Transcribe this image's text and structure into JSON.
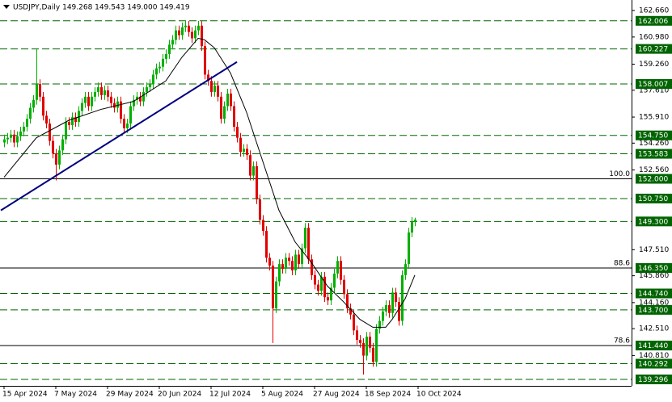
{
  "chart_data": {
    "type": "candlestick",
    "title": "USDJPY,Daily  149.268 149.543 149.000 149.419",
    "bull_color": "#00b000",
    "bear_color": "#e00000",
    "open": [
      154.3,
      154.5,
      154.6,
      154.8,
      154.3,
      154.7,
      155.0,
      155.3,
      155.8,
      156.5,
      157.0,
      158.0,
      157.2,
      156.0,
      155.5,
      154.4,
      153.6,
      152.9,
      153.8,
      154.5,
      155.6,
      155.4,
      155.9,
      155.6,
      156.3,
      156.8,
      157.2,
      156.6,
      157.2,
      157.5,
      157.8,
      157.3,
      157.6,
      157.2,
      156.8,
      156.5,
      156.9,
      155.8,
      155.2,
      155.5,
      156.6,
      157.0,
      157.2,
      156.9,
      157.5,
      157.8,
      158.0,
      158.6,
      159.0,
      159.1,
      159.6,
      159.9,
      160.5,
      160.8,
      161.4,
      161.1,
      161.6,
      161.7,
      161.3,
      160.9,
      161.4,
      161.7,
      160.4,
      158.6,
      158.2,
      157.5,
      157.9,
      157.2,
      155.8,
      156.6,
      157.4,
      156.6,
      155.3,
      154.6,
      153.7,
      153.9,
      153.5,
      152.2,
      152.8,
      150.7,
      149.4,
      148.7,
      147.0,
      146.5,
      143.8,
      145.5,
      146.6,
      146.3,
      147.0,
      146.8,
      146.2,
      147.2,
      146.6,
      147.6,
      148.9,
      146.9,
      145.9,
      145.3,
      144.9,
      145.8,
      144.5,
      144.3,
      145.1,
      146.0,
      146.8,
      145.6,
      144.7,
      143.8,
      143.4,
      142.4,
      141.8,
      141.6,
      140.8,
      142.0,
      141.3,
      140.4,
      142.5,
      143.0,
      143.6,
      144.0,
      143.5,
      144.8,
      144.2,
      143.0,
      145.9,
      146.6,
      148.6,
      149.268
    ],
    "high": [
      154.8,
      154.9,
      155.1,
      155.1,
      155.0,
      155.3,
      155.6,
      156.1,
      156.8,
      157.3,
      160.2,
      158.3,
      157.5,
      156.3,
      155.8,
      154.7,
      153.9,
      154.1,
      154.8,
      155.9,
      155.9,
      156.2,
      156.2,
      156.6,
      157.1,
      157.5,
      157.5,
      157.5,
      157.8,
      158.1,
      158.1,
      157.9,
      157.9,
      157.5,
      157.1,
      157.2,
      157.2,
      156.1,
      155.8,
      156.9,
      157.3,
      157.5,
      157.5,
      157.8,
      158.1,
      158.3,
      158.9,
      159.3,
      159.4,
      159.9,
      160.2,
      160.8,
      161.1,
      161.7,
      161.7,
      161.9,
      162.0,
      162.0,
      161.6,
      161.7,
      162.0,
      162.0,
      160.7,
      158.9,
      158.5,
      158.2,
      158.2,
      157.5,
      156.9,
      157.7,
      157.7,
      156.9,
      155.6,
      154.9,
      154.2,
      154.2,
      153.8,
      153.1,
      153.1,
      151.0,
      149.7,
      149.0,
      147.3,
      146.8,
      145.8,
      146.9,
      146.9,
      147.3,
      147.3,
      147.1,
      147.5,
      147.5,
      147.9,
      149.2,
      149.2,
      147.2,
      146.2,
      145.6,
      146.1,
      146.1,
      144.8,
      145.4,
      146.3,
      147.1,
      147.1,
      145.9,
      145.0,
      144.1,
      143.7,
      142.7,
      142.1,
      141.9,
      142.3,
      142.3,
      141.6,
      142.8,
      143.3,
      143.9,
      144.3,
      144.3,
      145.1,
      145.1,
      144.5,
      146.2,
      146.9,
      148.9,
      149.57,
      149.543
    ],
    "low": [
      154.0,
      154.2,
      154.3,
      154.0,
      154.0,
      154.4,
      154.7,
      155.0,
      155.5,
      156.2,
      156.7,
      156.9,
      155.7,
      155.2,
      154.1,
      153.3,
      151.9,
      152.6,
      153.5,
      154.2,
      155.1,
      155.1,
      155.3,
      155.3,
      156.0,
      156.5,
      156.3,
      156.3,
      156.9,
      157.2,
      157.0,
      157.0,
      156.9,
      156.5,
      156.2,
      156.2,
      155.5,
      154.9,
      154.9,
      155.2,
      156.3,
      156.7,
      156.6,
      156.6,
      157.2,
      157.5,
      157.7,
      158.3,
      158.7,
      158.8,
      159.3,
      159.6,
      160.2,
      160.5,
      160.8,
      160.8,
      161.3,
      161.0,
      160.6,
      160.6,
      161.1,
      160.1,
      158.3,
      157.9,
      157.2,
      157.2,
      156.9,
      155.5,
      155.5,
      156.3,
      156.3,
      155.0,
      154.3,
      153.4,
      153.4,
      153.2,
      151.9,
      151.9,
      150.4,
      149.1,
      148.4,
      146.7,
      146.2,
      141.6,
      143.5,
      145.2,
      146.0,
      146.0,
      146.5,
      145.9,
      145.9,
      146.3,
      146.3,
      147.3,
      146.6,
      145.6,
      145.0,
      144.6,
      144.6,
      144.2,
      144.0,
      144.0,
      144.8,
      145.7,
      145.3,
      144.4,
      143.5,
      143.1,
      142.1,
      141.5,
      141.3,
      139.6,
      140.5,
      141.0,
      140.1,
      140.1,
      142.2,
      142.7,
      143.3,
      143.2,
      143.2,
      143.9,
      142.7,
      142.7,
      145.6,
      146.3,
      148.3,
      149.0
    ],
    "close": [
      154.5,
      154.6,
      154.8,
      154.3,
      154.7,
      155.0,
      155.3,
      155.8,
      156.5,
      157.0,
      158.0,
      157.2,
      156.0,
      155.5,
      154.4,
      153.6,
      152.9,
      153.8,
      154.5,
      155.6,
      155.4,
      155.9,
      155.6,
      156.3,
      156.8,
      157.2,
      156.6,
      157.2,
      157.5,
      157.8,
      157.3,
      157.6,
      157.2,
      156.8,
      156.5,
      156.9,
      155.8,
      155.2,
      155.5,
      156.6,
      157.0,
      157.2,
      156.9,
      157.5,
      157.8,
      158.0,
      158.6,
      159.0,
      159.1,
      159.6,
      159.9,
      160.5,
      160.8,
      161.4,
      161.1,
      161.6,
      161.7,
      161.3,
      160.9,
      161.4,
      161.7,
      160.4,
      158.6,
      158.2,
      157.5,
      157.9,
      157.2,
      155.8,
      156.6,
      157.4,
      156.6,
      155.3,
      154.6,
      153.7,
      153.9,
      153.5,
      152.2,
      152.8,
      150.7,
      149.4,
      148.7,
      147.0,
      146.5,
      143.8,
      145.5,
      146.6,
      146.3,
      147.0,
      146.8,
      146.2,
      147.2,
      146.6,
      147.6,
      148.9,
      146.9,
      145.9,
      145.3,
      144.9,
      145.8,
      144.5,
      144.3,
      145.1,
      146.0,
      146.8,
      145.6,
      144.7,
      143.8,
      143.4,
      142.4,
      141.8,
      141.6,
      140.8,
      142.0,
      141.3,
      140.4,
      142.5,
      143.0,
      143.6,
      144.0,
      143.5,
      144.8,
      144.2,
      143.0,
      145.9,
      146.6,
      148.6,
      149.27,
      149.419
    ],
    "ma": {
      "color": "#000000",
      "x": [
        0,
        10,
        20,
        30,
        40,
        50,
        55,
        60,
        62,
        65,
        70,
        75,
        80,
        85,
        90,
        95,
        100,
        105,
        110,
        114,
        118,
        120,
        124,
        127
      ],
      "values": [
        152.1,
        154.6,
        155.7,
        156.4,
        156.9,
        158.2,
        159.7,
        160.9,
        160.8,
        160.3,
        158.7,
        156.2,
        153.1,
        150.0,
        148.0,
        146.7,
        145.2,
        144.2,
        143.1,
        142.6,
        142.6,
        143.1,
        144.4,
        145.9
      ]
    },
    "trendline": {
      "color": "#000080",
      "x": [
        -1,
        72
      ],
      "values": [
        150.0,
        159.4
      ]
    },
    "level_color": "#006400",
    "levels": [
      162.006,
      160.227,
      158.007,
      {
        "value": 154.75,
        "label": "154.750"
      },
      153.583,
      {
        "value": 150.75,
        "label": "150.750"
      },
      {
        "value": 149.3,
        "label": "149.300"
      },
      {
        "value": 144.74,
        "label": "144.740"
      },
      {
        "value": 143.7,
        "label": "143.700"
      },
      140.292,
      139.296
    ],
    "fib_levels": [
      {
        "value": 152.0,
        "label": "152.000",
        "ratio": "100.0"
      },
      {
        "value": 146.35,
        "label": "146.350",
        "ratio": "88.6"
      },
      {
        "value": 141.44,
        "label": "141.440",
        "ratio": "78.6"
      }
    ],
    "ylim": [
      138.887,
      163.325
    ],
    "yticks": [
      {
        "value": 162.66,
        "label": "162.660"
      },
      {
        "value": 160.98,
        "label": "160.980"
      },
      {
        "value": 159.26,
        "label": "159.260"
      },
      {
        "value": 157.61,
        "label": "157.610"
      },
      {
        "value": 155.91,
        "label": "155.910"
      },
      {
        "value": 154.26,
        "label": "154.260"
      },
      {
        "value": 152.56,
        "label": "152.560"
      },
      {
        "value": 147.51,
        "label": "147.510"
      },
      {
        "value": 145.86,
        "label": "145.860"
      },
      {
        "value": 144.16,
        "label": "144.160"
      },
      {
        "value": 142.51,
        "label": "142.510"
      },
      {
        "value": 140.81,
        "label": "140.810"
      }
    ],
    "xticks": [
      {
        "value": 0,
        "label": "15 Apr 2024"
      },
      {
        "value": 16,
        "label": "7 May 2024"
      },
      {
        "value": 32,
        "label": "29 May 2024"
      },
      {
        "value": 48,
        "label": "20 Jun 2024"
      },
      {
        "value": 64,
        "label": "12 Jul 2024"
      },
      {
        "value": 80,
        "label": "5 Aug 2024"
      },
      {
        "value": 96,
        "label": "27 Aug 2024"
      },
      {
        "value": 112,
        "label": "18 Sep 2024"
      },
      {
        "value": 128,
        "label": "10 Oct 2024"
      }
    ]
  }
}
